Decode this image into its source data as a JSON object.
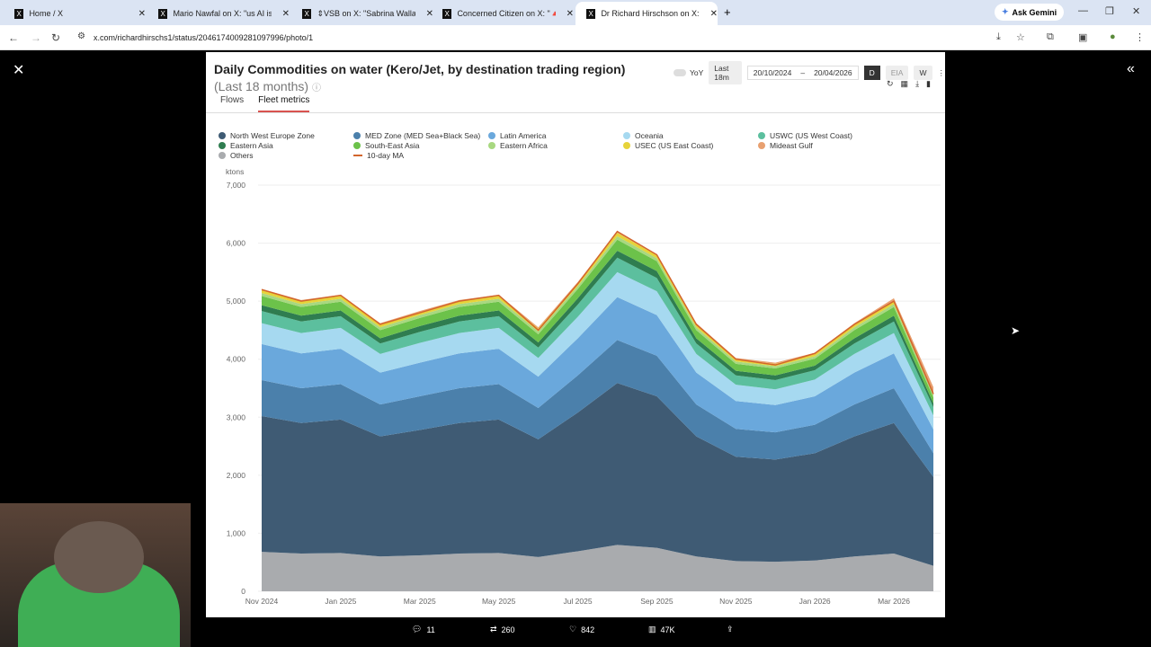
{
  "browser": {
    "tabs": [
      {
        "label": "Home / X"
      },
      {
        "label": "Mario Nawfal on X: \"us AI is no"
      },
      {
        "label": "⇕VSB on X: \"Sabrina Wallace fo"
      },
      {
        "label": "Concerned Citizen on X: \"🔺 no"
      },
      {
        "label": "Dr Richard Hirschson on X: \"⚠️"
      }
    ],
    "ask_gemini": "Ask Gemini",
    "url": "x.com/richardhirschs1/status/2046174009281097996/photo/1"
  },
  "panel": {
    "title": "Daily Commodities on water (Kero/Jet, by destination trading region)",
    "subtitle": "(Last 18 months)",
    "yoy": "YoY",
    "range": "Last 18m",
    "date_from": "20/10/2024",
    "date_sep": "–",
    "date_to": "20/04/2026",
    "freq": [
      "D",
      "EIA",
      "W"
    ],
    "tabs": [
      "Flows",
      "Fleet metrics"
    ]
  },
  "footer": {
    "comments": "11",
    "reposts": "260",
    "likes": "842",
    "views": "47K"
  },
  "chart_data": {
    "type": "area",
    "title": "Daily Commodities on water (Kero/Jet, by destination trading region)",
    "ylabel": "ktons",
    "ylim": [
      0,
      7000
    ],
    "yticks": [
      "0",
      "1,000",
      "2,000",
      "3,000",
      "4,000",
      "5,000",
      "6,000",
      "7,000"
    ],
    "xticks": [
      "Nov 2024",
      "Jan 2025",
      "Mar 2025",
      "May 2025",
      "Jul 2025",
      "Sep 2025",
      "Nov 2025",
      "Jan 2026",
      "Mar 2026"
    ],
    "x": [
      "2024-11",
      "2024-12",
      "2025-01",
      "2025-02",
      "2025-03",
      "2025-04",
      "2025-05",
      "2025-06",
      "2025-07",
      "2025-08",
      "2025-09",
      "2025-10",
      "2025-11",
      "2025-12",
      "2026-01",
      "2026-02",
      "2026-03",
      "2026-04"
    ],
    "stacked": true,
    "series": [
      {
        "name": "Others",
        "color": "#a9abae",
        "values": [
          680,
          650,
          660,
          600,
          620,
          650,
          660,
          590,
          690,
          800,
          750,
          600,
          520,
          510,
          530,
          600,
          650,
          440
        ]
      },
      {
        "name": "North West Europe Zone",
        "color": "#3f5b74",
        "values": [
          2340,
          2250,
          2300,
          2070,
          2160,
          2250,
          2300,
          2030,
          2390,
          2790,
          2610,
          2070,
          1800,
          1760,
          1850,
          2070,
          2250,
          1530
        ]
      },
      {
        "name": "MED Zone (MED Sea+Black Sea)",
        "color": "#4b80ab",
        "values": [
          620,
          600,
          610,
          550,
          580,
          600,
          610,
          540,
          640,
          740,
          700,
          550,
          480,
          470,
          490,
          550,
          600,
          410
        ]
      },
      {
        "name": "Latin America",
        "color": "#6aa8dc",
        "values": [
          620,
          600,
          610,
          550,
          580,
          600,
          610,
          540,
          640,
          740,
          700,
          550,
          480,
          470,
          490,
          550,
          600,
          410
        ]
      },
      {
        "name": "Oceania",
        "color": "#a6d9f0",
        "values": [
          360,
          350,
          360,
          320,
          340,
          350,
          360,
          320,
          370,
          430,
          410,
          320,
          280,
          270,
          290,
          320,
          350,
          240
        ]
      },
      {
        "name": "USWC (US West Coast)",
        "color": "#5cbf9e",
        "values": [
          210,
          200,
          200,
          180,
          190,
          200,
          200,
          180,
          210,
          250,
          230,
          180,
          160,
          160,
          160,
          180,
          200,
          140
        ]
      },
      {
        "name": "Eastern Asia",
        "color": "#2f7d50",
        "values": [
          100,
          100,
          100,
          90,
          100,
          100,
          100,
          90,
          110,
          120,
          120,
          90,
          80,
          80,
          80,
          90,
          100,
          70
        ]
      },
      {
        "name": "South-East Asia",
        "color": "#6cc24a",
        "values": [
          160,
          150,
          150,
          140,
          140,
          150,
          150,
          140,
          160,
          190,
          170,
          140,
          120,
          120,
          120,
          140,
          150,
          100
        ]
      },
      {
        "name": "Eastern Africa",
        "color": "#a8d880",
        "values": [
          50,
          50,
          50,
          50,
          50,
          50,
          50,
          50,
          50,
          60,
          50,
          50,
          40,
          40,
          40,
          50,
          50,
          40
        ]
      },
      {
        "name": "USEC (US East Coast)",
        "color": "#e6d33a",
        "values": [
          50,
          50,
          50,
          50,
          50,
          50,
          50,
          50,
          50,
          60,
          50,
          50,
          40,
          40,
          40,
          50,
          50,
          40
        ]
      },
      {
        "name": "Mideast Gulf",
        "color": "#e8a070",
        "values": [
          20,
          20,
          20,
          20,
          20,
          20,
          20,
          20,
          20,
          20,
          20,
          20,
          20,
          20,
          20,
          20,
          50,
          100
        ]
      }
    ],
    "ma": {
      "name": "10-day MA",
      "color": "#d2652d",
      "values": [
        5200,
        5000,
        5100,
        4600,
        4800,
        5000,
        5100,
        4500,
        5300,
        6200,
        5800,
        4600,
        4000,
        3900,
        4100,
        4600,
        5000,
        3400
      ]
    },
    "legend_order": [
      "North West Europe Zone",
      "MED Zone (MED Sea+Black Sea)",
      "Latin America",
      "Oceania",
      "USWC (US West Coast)",
      "Eastern Asia",
      "South-East Asia",
      "Eastern Africa",
      "USEC (US East Coast)",
      "Mideast Gulf",
      "Others",
      "10-day MA"
    ],
    "legend_placement": "top"
  }
}
